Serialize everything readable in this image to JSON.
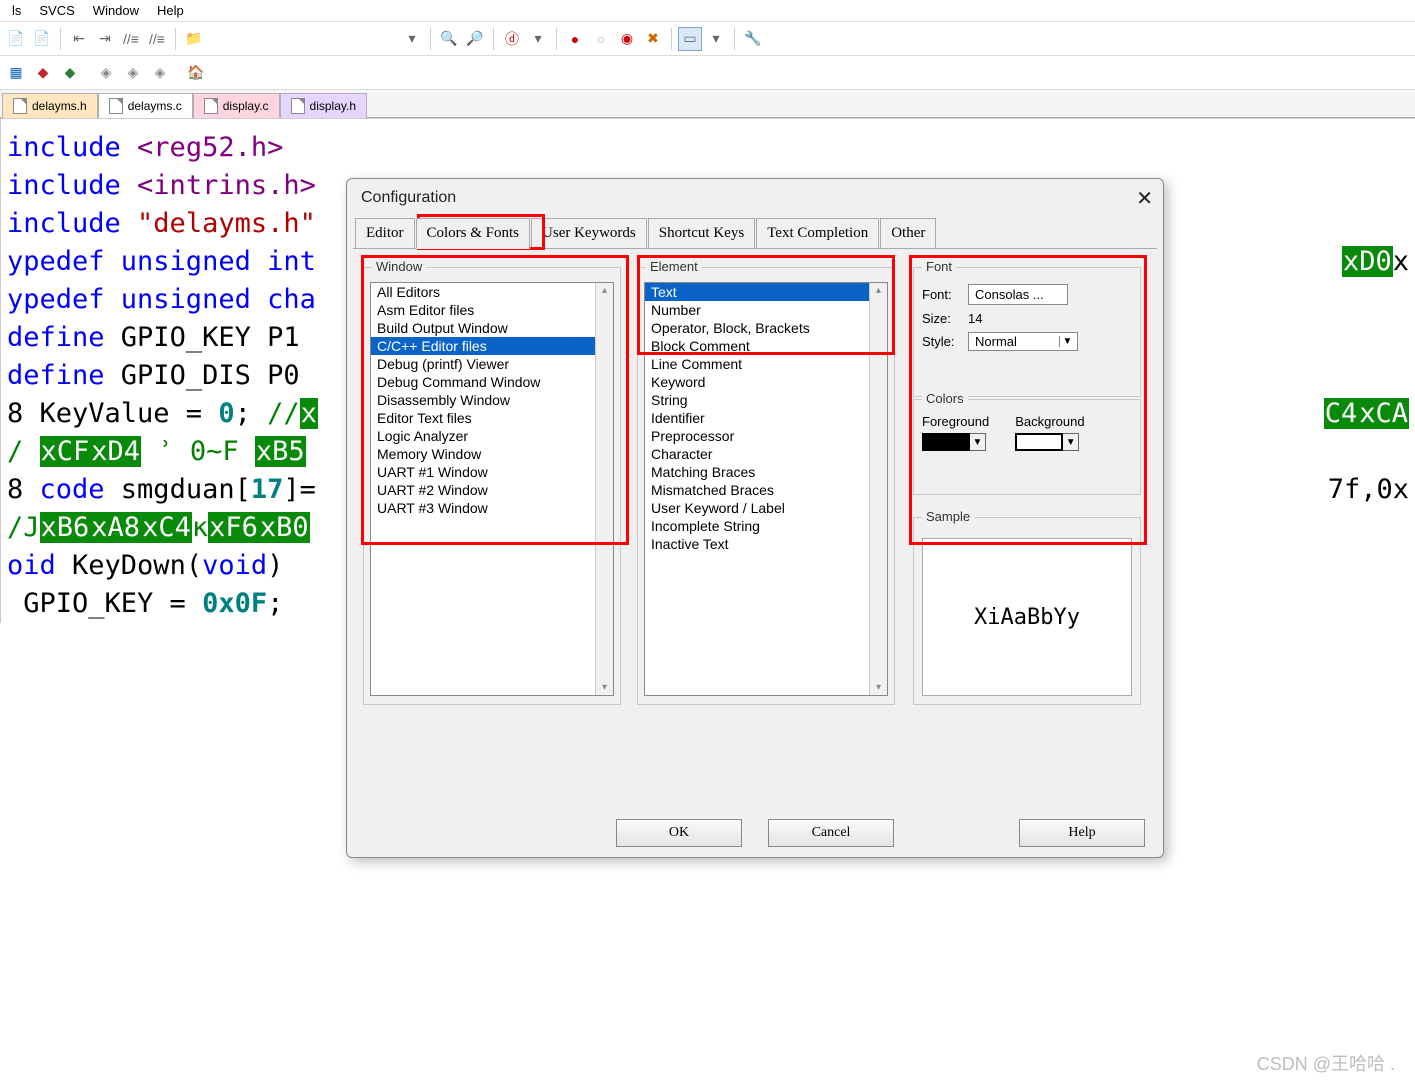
{
  "menu": {
    "items": [
      "ls",
      "SVCS",
      "Window",
      "Help"
    ]
  },
  "file_tabs": [
    {
      "label": "delayms.h",
      "cls": "orange"
    },
    {
      "label": "delayms.c",
      "cls": ""
    },
    {
      "label": "display.c",
      "cls": "pink"
    },
    {
      "label": "display.h",
      "cls": "purple"
    }
  ],
  "code": {
    "lines": [
      {
        "frag": [
          {
            "t": "include ",
            "c": "kw-blue"
          },
          {
            "t": "<reg52.h>",
            "c": "kw-purple"
          }
        ]
      },
      {
        "frag": [
          {
            "t": "include ",
            "c": "kw-blue"
          },
          {
            "t": "<intrins.h>",
            "c": "kw-purple"
          }
        ]
      },
      {
        "frag": [
          {
            "t": "include ",
            "c": "kw-blue"
          },
          {
            "t": "\"delayms.h\"",
            "c": "kw-str"
          }
        ]
      },
      {
        "frag": [
          {
            "t": "",
            "c": ""
          }
        ]
      },
      {
        "frag": [
          {
            "t": "",
            "c": ""
          }
        ]
      },
      {
        "frag": [
          {
            "t": "ypedef unsigned int",
            "c": "kw-blue"
          }
        ],
        "tail": [
          {
            "t": "xD0",
            "c": "enc"
          },
          {
            "t": "x",
            "c": ""
          }
        ]
      },
      {
        "frag": [
          {
            "t": "ypedef unsigned cha",
            "c": "kw-blue"
          }
        ]
      },
      {
        "frag": [
          {
            "t": "",
            "c": ""
          }
        ]
      },
      {
        "frag": [
          {
            "t": "define ",
            "c": "kw-blue"
          },
          {
            "t": "GPIO_KEY P1",
            "c": ""
          }
        ]
      },
      {
        "frag": [
          {
            "t": "define ",
            "c": "kw-blue"
          },
          {
            "t": "GPIO_DIS P0",
            "c": ""
          }
        ]
      },
      {
        "frag": [
          {
            "t": "",
            "c": ""
          }
        ]
      },
      {
        "frag": [
          {
            "t": "8 KeyValue = ",
            "c": ""
          },
          {
            "t": "0",
            "c": "kw-num"
          },
          {
            "t": "; ",
            "c": ""
          },
          {
            "t": "//",
            "c": "kw-green"
          },
          {
            "t": "x",
            "c": "enc"
          }
        ],
        "tail": [
          {
            "t": "C4",
            "c": "enc"
          },
          {
            "t": "xCA",
            "c": "enc"
          }
        ]
      },
      {
        "frag": [
          {
            "t": "",
            "c": ""
          }
        ]
      },
      {
        "frag": [
          {
            "t": "/ ",
            "c": "kw-green"
          },
          {
            "t": "xCF",
            "c": "enc"
          },
          {
            "t": "xD4",
            "c": "enc"
          },
          {
            "t": " ʾ 0~F ",
            "c": "kw-green"
          },
          {
            "t": "xB5",
            "c": "enc"
          }
        ]
      },
      {
        "frag": [
          {
            "t": "8 ",
            "c": ""
          },
          {
            "t": "code ",
            "c": "kw-blue"
          },
          {
            "t": "smgduan[",
            "c": ""
          },
          {
            "t": "17",
            "c": "kw-num"
          },
          {
            "t": "]=",
            "c": ""
          }
        ],
        "tail": [
          {
            "t": "7f,0x",
            "c": ""
          }
        ]
      },
      {
        "frag": [
          {
            "t": "",
            "c": ""
          }
        ]
      },
      {
        "frag": [
          {
            "t": "/J",
            "c": "kw-green"
          },
          {
            "t": "xB6",
            "c": "enc"
          },
          {
            "t": "xA8",
            "c": "enc"
          },
          {
            "t": "xC4",
            "c": "enc"
          },
          {
            "t": "к",
            "c": "kw-green"
          },
          {
            "t": "xF6",
            "c": "enc"
          },
          {
            "t": "xB0",
            "c": "enc"
          }
        ]
      },
      {
        "frag": [
          {
            "t": "oid ",
            "c": "kw-blue"
          },
          {
            "t": "KeyDown(",
            "c": ""
          },
          {
            "t": "void",
            "c": "kw-blue"
          },
          {
            "t": ")",
            "c": ""
          }
        ]
      },
      {
        "frag": [
          {
            "t": "",
            "c": ""
          }
        ]
      },
      {
        "frag": [
          {
            "t": " GPIO_KEY = ",
            "c": ""
          },
          {
            "t": "0x0F",
            "c": "kw-num"
          },
          {
            "t": ";",
            "c": ""
          }
        ]
      }
    ]
  },
  "dialog": {
    "title": "Configuration",
    "tabs": [
      "Editor",
      "Colors & Fonts",
      "User Keywords",
      "Shortcut Keys",
      "Text Completion",
      "Other"
    ],
    "tab_selected": 1,
    "window_title": "Window",
    "window_items": [
      "All Editors",
      "Asm Editor files",
      "Build Output Window",
      "C/C++ Editor files",
      "Debug (printf) Viewer",
      "Debug Command Window",
      "Disassembly Window",
      "Editor Text files",
      "Logic Analyzer",
      "Memory Window",
      "UART #1 Window",
      "UART #2 Window",
      "UART #3 Window"
    ],
    "window_selected": 3,
    "element_title": "Element",
    "element_items": [
      "Text",
      "Number",
      "Operator, Block, Brackets",
      "Block Comment",
      "Line Comment",
      "Keyword",
      "String",
      "Identifier",
      "Preprocessor",
      "Character",
      "Matching Braces",
      "Mismatched Braces",
      "User Keyword / Label",
      "Incomplete String",
      "Inactive Text"
    ],
    "element_selected": 0,
    "font_title": "Font",
    "font_label": "Font:",
    "font_value": "Consolas ...",
    "size_label": "Size:",
    "size_value": "14",
    "style_label": "Style:",
    "style_value": "Normal",
    "colors_title": "Colors",
    "fg_label": "Foreground",
    "bg_label": "Background",
    "fg_color": "#000000",
    "bg_color": "#ffffff",
    "sample_title": "Sample",
    "sample_text": "XiAaBbYy",
    "ok": "OK",
    "cancel": "Cancel",
    "help": "Help"
  },
  "watermark": "CSDN @王哈哈 ."
}
